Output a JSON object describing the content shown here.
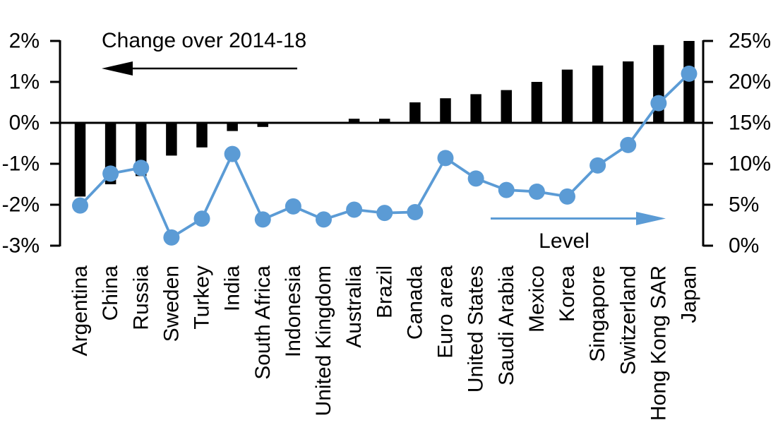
{
  "chart_data": {
    "type": "combo-bar-line",
    "categories": [
      "Argentina",
      "China",
      "Russia",
      "Sweden",
      "Turkey",
      "India",
      "South Africa",
      "Indonesia",
      "United Kingdom",
      "Australia",
      "Brazil",
      "Canada",
      "Euro area",
      "United States",
      "Saudi Arabia",
      "Mexico",
      "Korea",
      "Singapore",
      "Switzerland",
      "Hong Kong SAR",
      "Japan"
    ],
    "series": [
      {
        "name": "Change over 2014-18",
        "type": "bar",
        "axis": "left",
        "color": "#000000",
        "values": [
          -1.8,
          -1.5,
          -1.3,
          -0.8,
          -0.6,
          -0.2,
          -0.1,
          0.0,
          0.0,
          0.1,
          0.1,
          0.5,
          0.6,
          0.7,
          0.8,
          1.0,
          1.3,
          1.4,
          1.5,
          1.9,
          2.0
        ]
      },
      {
        "name": "Level",
        "type": "line",
        "axis": "right",
        "color": "#5B9BD5",
        "values": [
          4.9,
          8.8,
          9.5,
          1.0,
          3.3,
          11.2,
          3.2,
          4.8,
          3.2,
          4.4,
          4.0,
          4.1,
          10.7,
          8.2,
          6.8,
          6.6,
          6.0,
          9.8,
          12.3,
          17.4,
          21.0
        ]
      }
    ],
    "left_axis": {
      "unit": "%",
      "min": -3,
      "max": 2,
      "tick_values": [
        2,
        1,
        0,
        -1,
        -2,
        -3
      ],
      "tick_labels": [
        "2%",
        "1%",
        "0%",
        "-1%",
        "-2%",
        "-3%"
      ]
    },
    "right_axis": {
      "unit": "%",
      "min": 0,
      "max": 25,
      "tick_values": [
        25,
        20,
        15,
        10,
        5,
        0
      ],
      "tick_labels": [
        "25%",
        "20%",
        "15%",
        "10%",
        "5%",
        "0%"
      ]
    },
    "annotations": {
      "change_label": "Change over 2014-18",
      "change_arrow_direction": "left",
      "level_label": "Level",
      "level_arrow_direction": "right"
    },
    "grid": "off",
    "legend": "none",
    "background": "#FFFFFF",
    "bar_color": "#000000",
    "line_color": "#5B9BD5"
  }
}
